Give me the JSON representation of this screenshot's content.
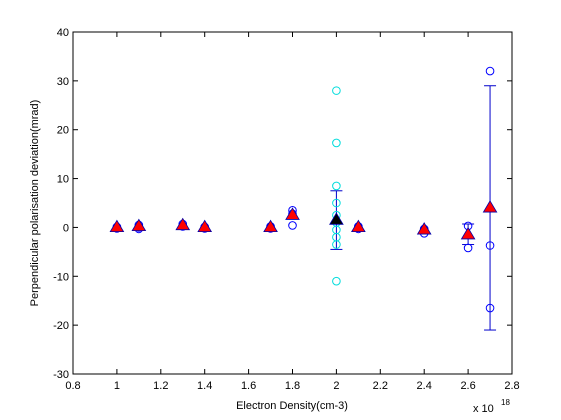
{
  "chart_data": {
    "type": "scatter",
    "title": "",
    "xlabel": "Electron Density(cm-3)",
    "ylabel": "Perpendicular polarisation deviation(mrad)",
    "x_exponent_label": "x 10",
    "x_exponent": "18",
    "xlim": [
      0.8,
      2.8
    ],
    "ylim": [
      -30,
      40
    ],
    "x_ticks": [
      "0.8",
      "1",
      "1.2",
      "1.4",
      "1.6",
      "1.8",
      "2",
      "2.2",
      "2.4",
      "2.6",
      "2.8"
    ],
    "y_ticks": [
      "-30",
      "-20",
      "-10",
      "0",
      "10",
      "20",
      "30",
      "40"
    ],
    "grid": false,
    "colors": {
      "circle_blue": "#0000ff",
      "circle_cyan": "#00dcdc",
      "triangle_red": "#ff0000",
      "triangle_black": "#000000",
      "errorbar": "#0000cc"
    },
    "series": [
      {
        "marker": "circle",
        "color": "#0000ff",
        "points": [
          [
            1.0,
            0.1
          ],
          [
            1.0,
            -0.2
          ],
          [
            1.1,
            0.5
          ],
          [
            1.1,
            0.0
          ],
          [
            1.1,
            -0.3
          ],
          [
            1.3,
            0.7
          ],
          [
            1.3,
            0.2
          ],
          [
            1.4,
            0.1
          ],
          [
            1.4,
            -0.2
          ],
          [
            1.7,
            0.2
          ],
          [
            1.7,
            -0.2
          ],
          [
            1.8,
            3.5
          ],
          [
            1.8,
            2.8
          ],
          [
            1.8,
            0.4
          ],
          [
            2.1,
            0.2
          ],
          [
            2.1,
            -0.3
          ],
          [
            2.4,
            -0.3
          ],
          [
            2.4,
            -1.2
          ],
          [
            2.6,
            0.3
          ],
          [
            2.6,
            -4.2
          ],
          [
            2.7,
            32.0
          ],
          [
            2.7,
            -3.7
          ],
          [
            2.7,
            -16.5
          ]
        ]
      },
      {
        "marker": "circle",
        "color": "#00dcdc",
        "points": [
          [
            2.0,
            28.0
          ],
          [
            2.0,
            17.3
          ],
          [
            2.0,
            8.5
          ],
          [
            2.0,
            5.0
          ],
          [
            2.0,
            2.5
          ],
          [
            2.0,
            1.0
          ],
          [
            2.0,
            -0.5
          ],
          [
            2.0,
            -2.0
          ],
          [
            2.0,
            -3.5
          ],
          [
            2.0,
            -11.0
          ]
        ]
      },
      {
        "marker": "triangle",
        "color": "#ff0000",
        "points": [
          [
            1.0,
            0.0
          ],
          [
            1.1,
            0.2
          ],
          [
            1.3,
            0.4
          ],
          [
            1.4,
            0.0
          ],
          [
            1.7,
            0.0
          ],
          [
            1.8,
            2.5
          ],
          [
            2.1,
            0.0
          ],
          [
            2.4,
            -0.5
          ],
          [
            2.6,
            -1.5
          ],
          [
            2.7,
            4.0
          ]
        ]
      },
      {
        "marker": "triangle",
        "color": "#000000",
        "points": [
          [
            2.0,
            1.5
          ]
        ]
      }
    ],
    "error_bars": [
      {
        "x": 2.0,
        "low": -4.5,
        "high": 7.5
      },
      {
        "x": 2.6,
        "low": -3.5,
        "high": 0.7
      },
      {
        "x": 2.7,
        "low": -21.0,
        "high": 29.0
      }
    ]
  }
}
